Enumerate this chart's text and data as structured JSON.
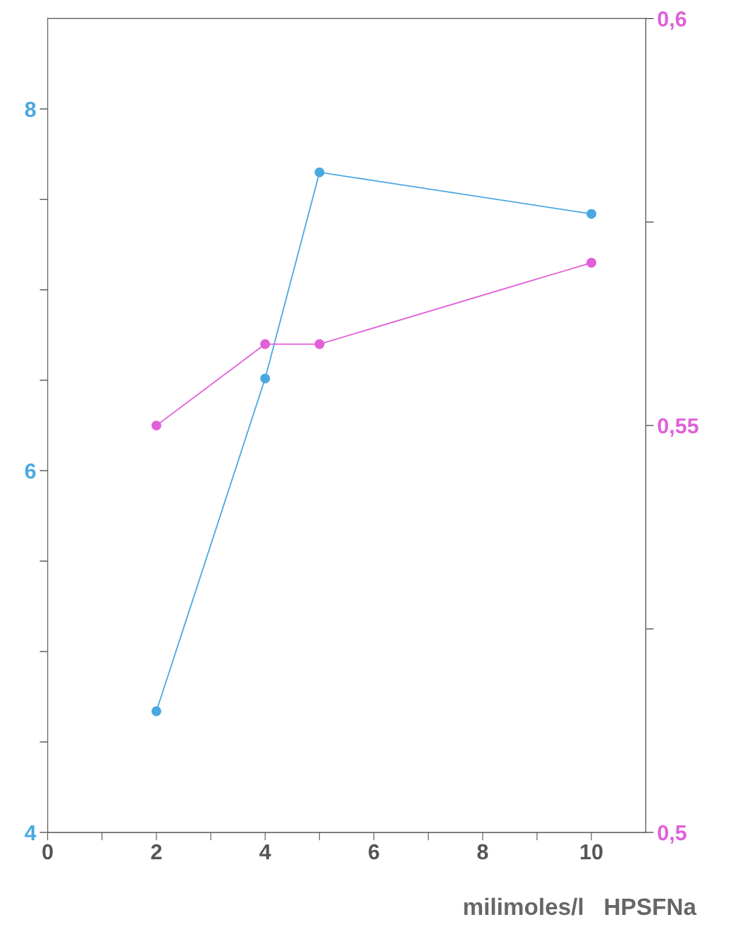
{
  "chart_data": {
    "type": "line",
    "xlabel": "milimoles/l   HPSFNa",
    "xlim": [
      0,
      11
    ],
    "xticks": [
      0,
      {
        "value": 1,
        "label": null
      },
      2,
      {
        "value": 3,
        "label": null
      },
      4,
      {
        "value": 5,
        "label": null
      },
      6,
      {
        "value": 7,
        "label": null
      },
      8,
      {
        "value": 9,
        "label": null
      },
      10
    ],
    "ylim": [
      4,
      8.5
    ],
    "yticks": [
      4,
      {
        "value": 4.5,
        "label": null
      },
      {
        "value": 5,
        "label": null
      },
      {
        "value": 5.5,
        "label": null
      },
      6,
      {
        "value": 6.5,
        "label": null
      },
      {
        "value": 7,
        "label": null
      },
      {
        "value": 7.5,
        "label": null
      },
      8
    ],
    "y2lim": [
      0.5,
      0.6
    ],
    "y2ticks": [
      {
        "value": 0.5,
        "label": "0,5"
      },
      {
        "value": 0.525,
        "label": null
      },
      {
        "value": 0.55,
        "label": "0,55"
      },
      {
        "value": 0.575,
        "label": null
      },
      {
        "value": 0.6,
        "label": "0,6"
      }
    ],
    "marker": "circle",
    "line_style": "solid",
    "grid": false,
    "legend": false,
    "series": [
      {
        "color": "#4aa8e0",
        "x": [
          2,
          4,
          5,
          10
        ],
        "values": [
          4.67,
          6.51,
          7.65,
          7.42
        ]
      },
      {
        "color": "#e060d8",
        "axis": "y2",
        "x": [
          2,
          4,
          5,
          10
        ],
        "values": [
          0.55,
          0.56,
          0.56,
          0.57
        ]
      }
    ]
  }
}
